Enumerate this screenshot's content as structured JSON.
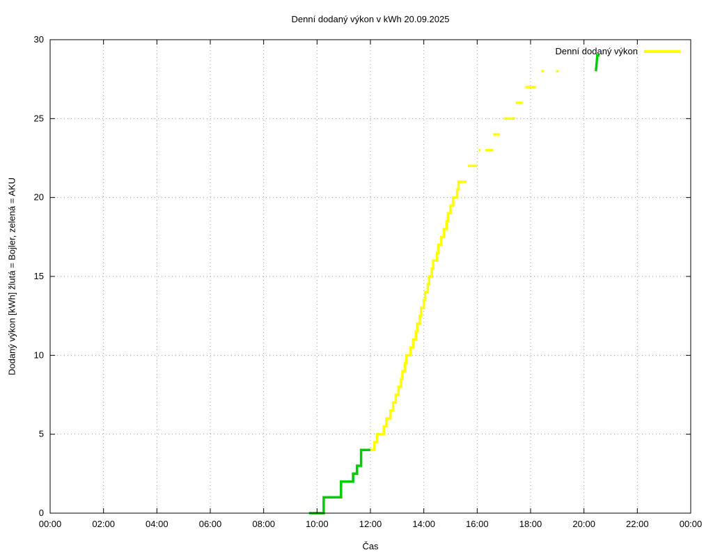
{
  "chart_data": {
    "type": "line",
    "title": "Denní dodaný výkon v kWh 20.09.2025",
    "xlabel": "Čas",
    "ylabel": "Dodaný výkon [kWh]  žlutá = Bojler, zelená = AKU",
    "xlim": [
      0,
      24
    ],
    "ylim": [
      0,
      30
    ],
    "grid": true,
    "x_ticks": [
      {
        "v": 0,
        "label": "00:00"
      },
      {
        "v": 2,
        "label": "02:00"
      },
      {
        "v": 4,
        "label": "04:00"
      },
      {
        "v": 6,
        "label": "06:00"
      },
      {
        "v": 8,
        "label": "08:00"
      },
      {
        "v": 10,
        "label": "10:00"
      },
      {
        "v": 12,
        "label": "12:00"
      },
      {
        "v": 14,
        "label": "14:00"
      },
      {
        "v": 16,
        "label": "16:00"
      },
      {
        "v": 18,
        "label": "18:00"
      },
      {
        "v": 20,
        "label": "20:00"
      },
      {
        "v": 22,
        "label": "22:00"
      },
      {
        "v": 24,
        "label": "00:00"
      }
    ],
    "y_ticks": [
      0,
      5,
      10,
      15,
      20,
      25,
      30
    ],
    "legend": {
      "position": "top-right",
      "entries": [
        {
          "label": "Denní dodaný výkon",
          "color": "#ffff00"
        }
      ]
    },
    "colors": {
      "bojler_yellow": "#ffff00",
      "aku_green": "#00cc00",
      "grid": "#9e9e9e",
      "axis": "#000000"
    },
    "series": [
      {
        "name": "Bojler (žlutá)",
        "color": "#ffff00",
        "segments": [
          [
            [
              11.95,
              4
            ],
            [
              12.15,
              4
            ],
            [
              12.15,
              4.5
            ],
            [
              12.25,
              4.5
            ],
            [
              12.25,
              5
            ],
            [
              12.5,
              5
            ],
            [
              12.5,
              5.5
            ],
            [
              12.6,
              5.5
            ],
            [
              12.6,
              6
            ],
            [
              12.75,
              6
            ],
            [
              12.75,
              6.5
            ],
            [
              12.85,
              6.5
            ],
            [
              12.85,
              7
            ],
            [
              12.95,
              7
            ],
            [
              12.95,
              7.5
            ],
            [
              13.05,
              7.5
            ],
            [
              13.05,
              8
            ],
            [
              13.15,
              8
            ],
            [
              13.15,
              8.5
            ],
            [
              13.2,
              8.5
            ],
            [
              13.2,
              9
            ],
            [
              13.3,
              9
            ],
            [
              13.3,
              9.5
            ],
            [
              13.35,
              9.5
            ],
            [
              13.35,
              10
            ],
            [
              13.5,
              10
            ],
            [
              13.5,
              10.5
            ],
            [
              13.6,
              10.5
            ],
            [
              13.6,
              11
            ],
            [
              13.7,
              11
            ],
            [
              13.7,
              11.5
            ],
            [
              13.75,
              11.5
            ],
            [
              13.75,
              12
            ],
            [
              13.85,
              12
            ],
            [
              13.85,
              12.5
            ],
            [
              13.9,
              12.5
            ],
            [
              13.9,
              13
            ],
            [
              14.0,
              13
            ],
            [
              14.0,
              13.5
            ],
            [
              14.05,
              13.5
            ],
            [
              14.05,
              14
            ],
            [
              14.15,
              14
            ],
            [
              14.15,
              14.5
            ],
            [
              14.2,
              14.5
            ],
            [
              14.2,
              15
            ],
            [
              14.3,
              15
            ],
            [
              14.3,
              15.5
            ],
            [
              14.35,
              15.5
            ],
            [
              14.35,
              16
            ],
            [
              14.5,
              16
            ],
            [
              14.5,
              16.5
            ],
            [
              14.55,
              16.5
            ],
            [
              14.55,
              17
            ],
            [
              14.65,
              17
            ],
            [
              14.65,
              17.5
            ],
            [
              14.75,
              17.5
            ],
            [
              14.75,
              18
            ],
            [
              14.85,
              18
            ],
            [
              14.85,
              18.5
            ],
            [
              14.9,
              18.5
            ],
            [
              14.9,
              19
            ],
            [
              15.0,
              19
            ],
            [
              15.0,
              19.5
            ],
            [
              15.1,
              19.5
            ],
            [
              15.1,
              20
            ],
            [
              15.25,
              20
            ],
            [
              15.25,
              20.5
            ],
            [
              15.3,
              20.5
            ],
            [
              15.3,
              21
            ],
            [
              15.6,
              21
            ]
          ],
          [
            [
              15.65,
              22
            ],
            [
              16.0,
              22
            ]
          ],
          [
            [
              16.05,
              23
            ],
            [
              16.12,
              23
            ]
          ],
          [
            [
              16.3,
              23
            ],
            [
              16.6,
              23
            ]
          ],
          [
            [
              16.6,
              24
            ],
            [
              16.85,
              24
            ]
          ],
          [
            [
              17.0,
              25
            ],
            [
              17.4,
              25
            ]
          ],
          [
            [
              17.45,
              26
            ],
            [
              17.7,
              26
            ]
          ],
          [
            [
              17.8,
              27
            ],
            [
              18.2,
              27
            ]
          ],
          [
            [
              18.4,
              28
            ],
            [
              18.5,
              28
            ]
          ],
          [
            [
              18.95,
              28
            ],
            [
              19.05,
              28
            ]
          ]
        ]
      },
      {
        "name": "AKU (zelená)",
        "color": "#00cc00",
        "segments": [
          [
            [
              9.7,
              0
            ],
            [
              10.25,
              0
            ],
            [
              10.25,
              1
            ],
            [
              10.9,
              1
            ],
            [
              10.9,
              2
            ],
            [
              11.35,
              2
            ],
            [
              11.35,
              2.5
            ],
            [
              11.5,
              2.5
            ],
            [
              11.5,
              3
            ],
            [
              11.65,
              3
            ],
            [
              11.65,
              4
            ],
            [
              12.0,
              4
            ]
          ],
          [
            [
              20.45,
              28
            ],
            [
              20.5,
              29
            ],
            [
              20.58,
              29
            ]
          ]
        ]
      }
    ]
  }
}
